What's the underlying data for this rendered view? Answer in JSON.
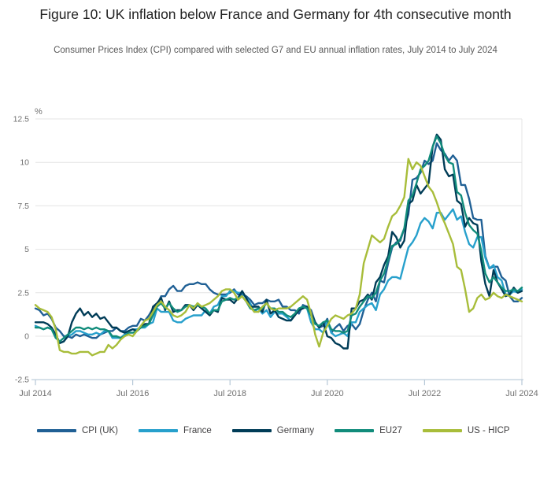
{
  "title": "Figure 10: UK inflation below France and Germany for 4th consecutive month",
  "subtitle": "Consumer Prices Index (CPI) compared with selected G7 and EU annual inflation rates, July 2014 to July 2024",
  "chart_data": {
    "type": "line",
    "unit_label": "%",
    "x_start_label": "Jul 2014",
    "x_end_label": "Jul 2024",
    "x_tick_labels": [
      "Jul 2014",
      "Jul 2016",
      "Jul 2018",
      "Jul 2020",
      "Jul 2022",
      "Jul 2024"
    ],
    "x_months_per_tick": 24,
    "y_tick_labels": [
      "-2.5",
      "0",
      "2.5",
      "5",
      "7.5",
      "10",
      "12.5"
    ],
    "y_ticks": [
      -2.5,
      0,
      2.5,
      5,
      7.5,
      10,
      12.5
    ],
    "ylim": [
      -2.5,
      12.5
    ],
    "grid": "horizontal",
    "legend_position": "bottom",
    "axis_color": "#b6c8d7",
    "grid_color": "#e4e4e4",
    "tick_text_color": "#707070",
    "series": [
      {
        "name": "CPI (UK)",
        "color": "#206095",
        "values": [
          1.6,
          1.5,
          1.2,
          1.3,
          1.0,
          0.5,
          0.3,
          0.0,
          0.0,
          -0.1,
          0.1,
          0.0,
          0.1,
          0.0,
          -0.1,
          -0.1,
          0.1,
          0.2,
          0.3,
          0.3,
          0.5,
          0.3,
          0.3,
          0.5,
          0.6,
          0.6,
          1.0,
          0.9,
          1.2,
          1.6,
          1.8,
          2.3,
          2.3,
          2.7,
          2.9,
          2.6,
          2.6,
          2.9,
          3.0,
          3.0,
          3.1,
          3.0,
          3.0,
          2.7,
          2.5,
          2.4,
          2.4,
          2.4,
          2.5,
          2.7,
          2.4,
          2.4,
          2.3,
          2.1,
          1.8,
          1.9,
          1.9,
          2.1,
          2.0,
          2.0,
          2.1,
          1.7,
          1.7,
          1.5,
          1.5,
          1.3,
          1.8,
          1.7,
          1.5,
          0.8,
          0.5,
          0.6,
          1.0,
          0.2,
          0.5,
          0.7,
          0.3,
          0.6,
          0.7,
          0.4,
          0.7,
          1.5,
          2.1,
          2.5,
          2.0,
          3.2,
          3.1,
          4.2,
          5.1,
          5.4,
          5.5,
          6.2,
          7.0,
          9.0,
          9.1,
          9.4,
          10.1,
          9.9,
          10.1,
          11.1,
          10.7,
          10.5,
          10.1,
          10.4,
          10.1,
          8.7,
          8.7,
          7.9,
          6.8,
          6.7,
          6.7,
          4.6,
          3.9,
          4.0,
          4.0,
          3.4,
          3.2,
          2.3,
          2.0,
          2.0,
          2.2
        ]
      },
      {
        "name": "France",
        "color": "#27A0CC",
        "values": [
          0.6,
          0.5,
          0.4,
          0.5,
          0.4,
          0.1,
          -0.4,
          -0.3,
          0.0,
          0.1,
          0.3,
          0.3,
          0.2,
          0.1,
          0.1,
          0.2,
          0.1,
          0.3,
          0.3,
          -0.1,
          -0.1,
          -0.1,
          0.1,
          0.3,
          0.4,
          0.4,
          0.5,
          0.5,
          0.7,
          0.8,
          1.6,
          1.4,
          1.4,
          1.4,
          0.9,
          0.8,
          0.8,
          1.0,
          1.1,
          1.2,
          1.2,
          1.2,
          1.5,
          1.3,
          1.7,
          1.8,
          2.3,
          2.3,
          2.6,
          2.6,
          2.5,
          2.5,
          2.2,
          1.9,
          1.4,
          1.6,
          1.3,
          1.5,
          1.1,
          1.4,
          1.3,
          1.3,
          1.1,
          0.9,
          1.2,
          1.6,
          1.7,
          1.6,
          0.8,
          0.4,
          0.4,
          0.2,
          0.9,
          0.2,
          0.0,
          0.1,
          0.2,
          0.0,
          0.8,
          0.8,
          1.4,
          1.6,
          1.8,
          1.9,
          1.5,
          2.4,
          2.7,
          3.2,
          3.4,
          3.4,
          3.3,
          4.2,
          5.1,
          5.4,
          5.8,
          6.5,
          6.8,
          6.6,
          6.2,
          7.1,
          7.1,
          6.7,
          7.0,
          7.3,
          6.7,
          6.9,
          6.0,
          5.3,
          5.1,
          5.7,
          5.7,
          4.5,
          3.9,
          4.1,
          3.4,
          3.2,
          2.4,
          2.4,
          2.6,
          2.5,
          2.7
        ]
      },
      {
        "name": "Germany",
        "color": "#003C57",
        "values": [
          0.8,
          0.8,
          0.8,
          0.7,
          0.5,
          0.1,
          -0.4,
          -0.3,
          0.0,
          0.8,
          1.3,
          1.6,
          1.2,
          1.4,
          1.1,
          1.3,
          1.0,
          1.1,
          0.8,
          0.5,
          0.5,
          0.3,
          0.2,
          0.3,
          0.4,
          0.3,
          0.5,
          0.7,
          0.7,
          1.7,
          1.9,
          2.2,
          1.5,
          2.0,
          1.4,
          1.5,
          1.5,
          1.8,
          1.8,
          1.5,
          1.8,
          1.6,
          1.4,
          1.2,
          1.5,
          1.4,
          2.2,
          2.1,
          2.1,
          1.9,
          2.2,
          2.6,
          2.2,
          1.7,
          1.7,
          1.7,
          1.4,
          2.1,
          1.3,
          1.5,
          1.1,
          1.0,
          0.9,
          0.9,
          1.2,
          1.5,
          1.6,
          1.7,
          1.3,
          0.8,
          0.5,
          0.8,
          0.0,
          -0.1,
          -0.4,
          -0.5,
          -0.7,
          -0.7,
          1.6,
          1.6,
          2.0,
          2.1,
          2.4,
          2.1,
          3.1,
          3.4,
          4.1,
          4.6,
          6.0,
          5.7,
          5.1,
          5.5,
          7.6,
          7.8,
          8.7,
          8.2,
          8.5,
          8.8,
          10.9,
          11.6,
          11.3,
          9.6,
          9.2,
          9.3,
          7.8,
          7.6,
          6.3,
          6.8,
          6.5,
          6.4,
          4.3,
          3.0,
          2.3,
          3.8,
          3.1,
          2.7,
          2.3,
          2.4,
          2.8,
          2.5,
          2.6
        ]
      },
      {
        "name": "EU27",
        "color": "#118C7B",
        "values": [
          0.5,
          0.5,
          0.4,
          0.5,
          0.4,
          -0.1,
          -0.3,
          -0.1,
          0.1,
          0.3,
          0.5,
          0.5,
          0.4,
          0.5,
          0.4,
          0.5,
          0.4,
          0.4,
          0.3,
          0.0,
          0.0,
          -0.1,
          0.0,
          0.2,
          0.2,
          0.3,
          0.5,
          0.6,
          0.7,
          1.2,
          1.7,
          1.9,
          1.6,
          1.9,
          1.6,
          1.4,
          1.5,
          1.7,
          1.8,
          1.7,
          1.8,
          1.7,
          1.6,
          1.3,
          1.5,
          1.5,
          2.0,
          2.1,
          2.2,
          2.1,
          2.2,
          2.3,
          2.0,
          1.6,
          1.5,
          1.6,
          1.6,
          1.9,
          1.6,
          1.6,
          1.4,
          1.4,
          1.2,
          1.1,
          1.3,
          1.6,
          1.7,
          1.6,
          1.2,
          0.7,
          0.6,
          0.8,
          0.9,
          0.4,
          0.3,
          0.3,
          0.2,
          0.3,
          1.2,
          1.3,
          1.7,
          2.0,
          2.3,
          2.2,
          2.5,
          3.2,
          3.6,
          4.4,
          5.2,
          5.3,
          5.6,
          6.2,
          7.8,
          8.1,
          8.8,
          9.6,
          9.8,
          10.1,
          10.9,
          11.5,
          11.1,
          10.4,
          10.0,
          9.9,
          8.3,
          8.1,
          7.1,
          6.4,
          6.1,
          5.9,
          4.9,
          3.6,
          3.1,
          3.4,
          3.1,
          2.8,
          2.6,
          2.6,
          2.7,
          2.6,
          2.8
        ]
      },
      {
        "name": "US - HICP",
        "color": "#A8BD3A",
        "values": [
          1.8,
          1.6,
          1.5,
          1.4,
          1.1,
          0.4,
          -0.8,
          -0.9,
          -0.9,
          -1.0,
          -1.0,
          -0.9,
          -0.9,
          -0.9,
          -1.1,
          -1.0,
          -0.9,
          -0.9,
          -0.5,
          -0.7,
          -0.5,
          -0.2,
          0.0,
          0.1,
          0.0,
          0.3,
          0.6,
          0.9,
          1.0,
          1.4,
          1.8,
          2.0,
          1.7,
          1.5,
          1.2,
          1.1,
          1.2,
          1.4,
          1.8,
          1.6,
          1.9,
          1.7,
          1.8,
          1.9,
          2.1,
          2.3,
          2.6,
          2.7,
          2.7,
          2.5,
          2.1,
          2.3,
          2.0,
          1.7,
          1.4,
          1.4,
          1.7,
          1.9,
          1.6,
          1.5,
          1.6,
          1.6,
          1.6,
          1.7,
          1.9,
          2.1,
          2.3,
          2.1,
          1.3,
          0.1,
          -0.6,
          0.2,
          0.6,
          1.0,
          1.2,
          1.1,
          1.0,
          1.2,
          1.3,
          1.6,
          2.4,
          4.2,
          5.0,
          5.8,
          5.6,
          5.4,
          5.6,
          6.3,
          6.9,
          7.1,
          7.5,
          8.0,
          10.2,
          9.6,
          10.0,
          9.8,
          9.2,
          8.6,
          8.3,
          7.7,
          7.0,
          6.5,
          5.9,
          5.3,
          4.0,
          3.8,
          2.7,
          1.4,
          1.6,
          2.2,
          2.4,
          2.1,
          2.2,
          2.5,
          2.3,
          2.2,
          2.4,
          2.3,
          2.2,
          2.1,
          2.0
        ]
      }
    ]
  }
}
